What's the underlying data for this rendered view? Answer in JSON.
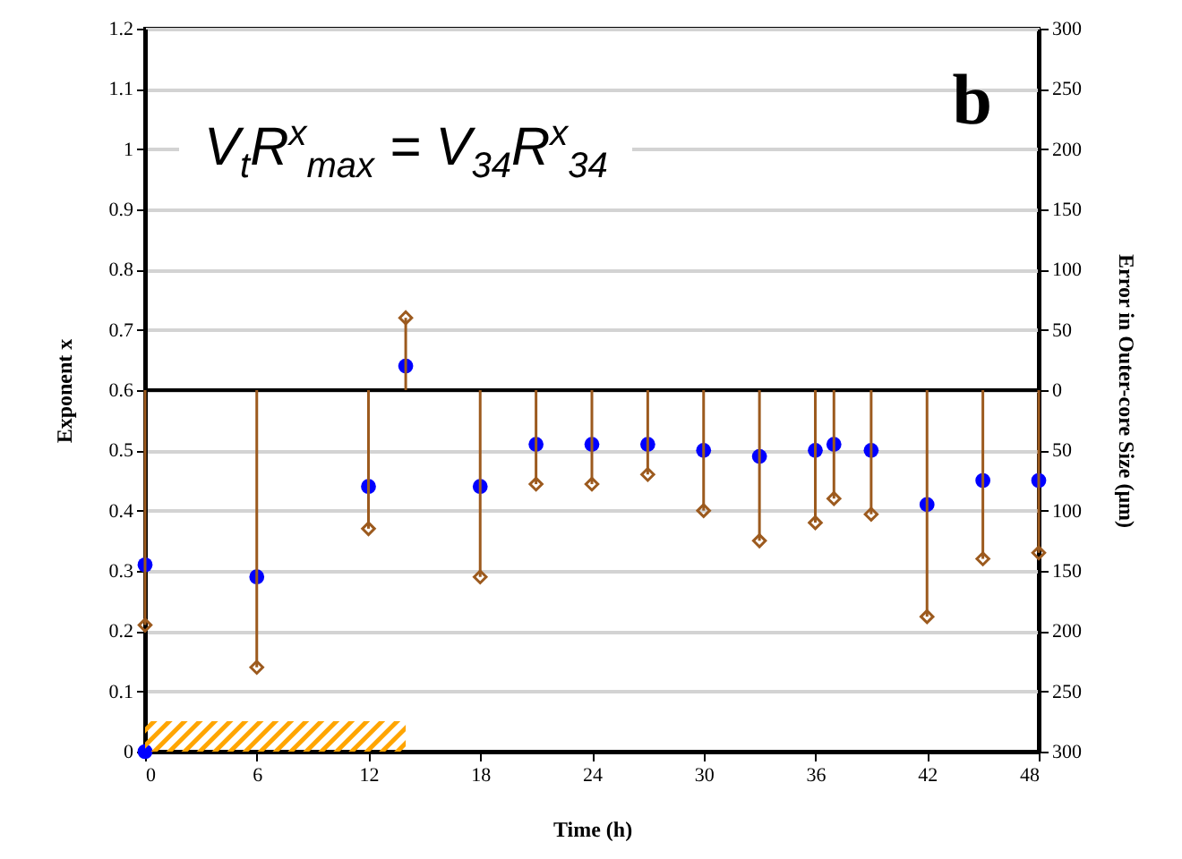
{
  "chart_data": {
    "type": "scatter",
    "xlabel": "Time (h)",
    "ylabel": "Exponent x",
    "y2label": "Error in Outer-core Size (μm)",
    "xlim": [
      0,
      48
    ],
    "xticks": [
      0,
      6,
      12,
      18,
      24,
      30,
      36,
      42,
      48
    ],
    "ylim": [
      0,
      1.2
    ],
    "yticks": [
      0,
      0.1,
      0.2,
      0.3,
      0.4,
      0.5,
      0.6,
      0.7,
      0.8,
      0.9,
      1,
      1.1,
      1.2
    ],
    "y2lim": [
      -300,
      300
    ],
    "y2ticks": [
      {
        "value": -300,
        "label": "300"
      },
      {
        "value": -250,
        "label": "250"
      },
      {
        "value": -200,
        "label": "200"
      },
      {
        "value": -150,
        "label": "150"
      },
      {
        "value": -100,
        "label": "100"
      },
      {
        "value": -50,
        "label": "50"
      },
      0,
      50,
      100,
      150,
      200,
      250,
      300
    ],
    "grid": "y",
    "series": [
      {
        "type": "scatter",
        "marker": "circle",
        "color": "#0000ff",
        "x": [
          0,
          0,
          6,
          12,
          14,
          18,
          21,
          24,
          27,
          30,
          33,
          36,
          37,
          39,
          42,
          45,
          48
        ],
        "values": [
          0.31,
          0,
          0.29,
          0.44,
          0.64,
          0.44,
          0.51,
          0.51,
          0.51,
          0.5,
          0.49,
          0.5,
          0.51,
          0.5,
          0.41,
          0.45,
          0.45
        ]
      },
      {
        "type": "lollipop",
        "axis": "y2",
        "marker": "diamond",
        "color": "#9c5a1e",
        "x": [
          0,
          6,
          12,
          14,
          18,
          21,
          24,
          27,
          30,
          33,
          36,
          37,
          39,
          42,
          45,
          48
        ],
        "values": [
          -195,
          -230,
          -115,
          60,
          -155,
          -78,
          -78,
          -70,
          -100,
          -125,
          -110,
          -90,
          -103,
          -188,
          -140,
          -135
        ]
      }
    ],
    "ref_lines": [
      {
        "axis": "y2",
        "value": 0,
        "color": "#000000"
      }
    ],
    "bands": [
      {
        "axis": "x",
        "from": 0,
        "to": 14,
        "color": "#ffa500"
      }
    ],
    "annotations": [
      "V$_{t}$R$^{x}$$_{max}$ = V$_{34}$R$^{x}$$_{34}$",
      "b"
    ]
  }
}
